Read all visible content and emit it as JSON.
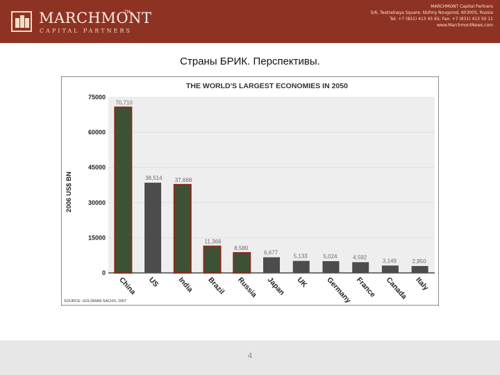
{
  "header": {
    "logo_name": "MARCHMONT",
    "logo_tm": "TM",
    "logo_sub": "CAPITAL PARTNERS",
    "contact_lines": [
      "MARCHMONT Capital Partners",
      "5/6, Teatralnaya Square, Nizhny Novgorod, 603005, Russia",
      "Tel: +7 (831) 413 45 65; Fax: +7 (831) 413 50 11",
      "www.MarchmontNews.com"
    ]
  },
  "slide": {
    "title": "Страны БРИК. Перспективы.",
    "page_number": "4"
  },
  "colors": {
    "header_bg": "#8e3324",
    "bric_bar": "#3d5235",
    "bric_outline": "#8b2a1c",
    "other_bar": "#4c4c4c",
    "footer_bg": "#e7e7e7"
  },
  "chart_data": {
    "type": "bar",
    "title": "THE WORLD'S LARGEST ECONOMIES IN 2050",
    "ylabel": "2006 US$ BN",
    "xlabel": "",
    "source": "SOURCE: GOLDMAN SACHS, 2007",
    "ylim": [
      0,
      75000
    ],
    "yticks": [
      "75000",
      "60000",
      "45000",
      "30000",
      "15000",
      "0"
    ],
    "categories": [
      "China",
      "US",
      "India",
      "Brazil",
      "Russia",
      "Japan",
      "UK",
      "Germany",
      "France",
      "Canada",
      "Italy"
    ],
    "values": [
      70710,
      38514,
      37668,
      11366,
      8580,
      6677,
      5133,
      5024,
      4592,
      3149,
      2950
    ],
    "value_labels": [
      "70,710",
      "38,514",
      "37,668",
      "11,366",
      "8,580",
      "6,677",
      "5,133",
      "5,024",
      "4,592",
      "3,149",
      "2,950"
    ],
    "highlight": [
      true,
      false,
      true,
      true,
      true,
      false,
      false,
      false,
      false,
      false,
      false
    ]
  }
}
